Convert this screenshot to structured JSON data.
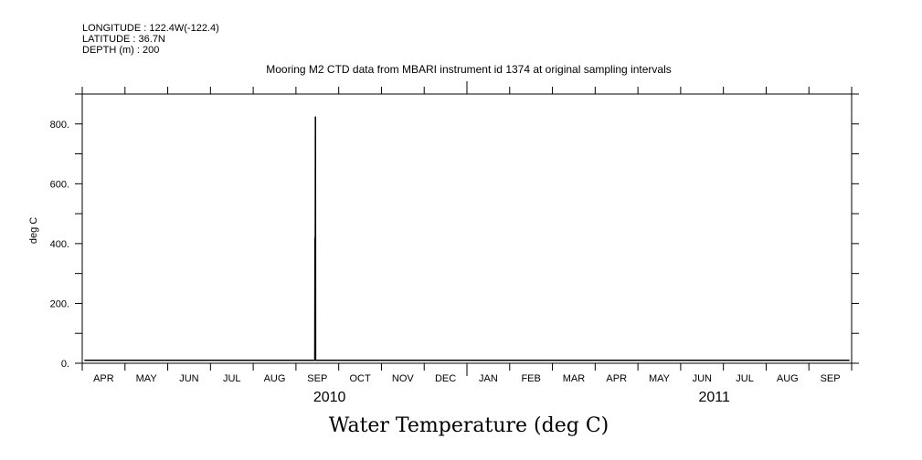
{
  "header": {
    "longitude": "LONGITUDE : 122.4W(-122.4)",
    "latitude": "LATITUDE : 36.7N",
    "depth": "DEPTH (m) : 200"
  },
  "chart_data": {
    "type": "line",
    "title": "Mooring M2 CTD data from MBARI instrument id 1374 at original sampling intervals",
    "xlabel": "Water Temperature (deg C)",
    "ylabel": "deg C",
    "x_units": "months since 2010-04-01",
    "xlim": [
      0,
      18
    ],
    "ylim": [
      0,
      900
    ],
    "y_tick_labels": [
      "0.",
      "200.",
      "400.",
      "600.",
      "800."
    ],
    "y_tick_values": [
      0,
      200,
      400,
      600,
      800
    ],
    "month_labels": [
      "APR",
      "MAY",
      "JUN",
      "JUL",
      "AUG",
      "SEP",
      "OCT",
      "NOV",
      "DEC",
      "JAN",
      "FEB",
      "MAR",
      "APR",
      "MAY",
      "JUN",
      "JUL",
      "AUG",
      "SEP"
    ],
    "year_labels": [
      {
        "label": "2010",
        "x": 6
      },
      {
        "label": "2011",
        "x": 15
      }
    ],
    "grid": false,
    "series": [
      {
        "name": "Water Temperature",
        "x": [
          0.05,
          1,
          2,
          3,
          4,
          5,
          5.44,
          5.445,
          5.45,
          5.455,
          5.46,
          5.47,
          6,
          7,
          8,
          9,
          10,
          11,
          12,
          13,
          14,
          15,
          16,
          17,
          17.95
        ],
        "y": [
          10,
          10,
          10,
          10,
          10,
          10,
          10,
          420,
          10,
          825,
          10,
          10,
          10,
          10,
          10,
          10,
          10,
          10,
          10,
          10,
          10,
          10,
          10,
          10,
          10
        ]
      }
    ]
  }
}
